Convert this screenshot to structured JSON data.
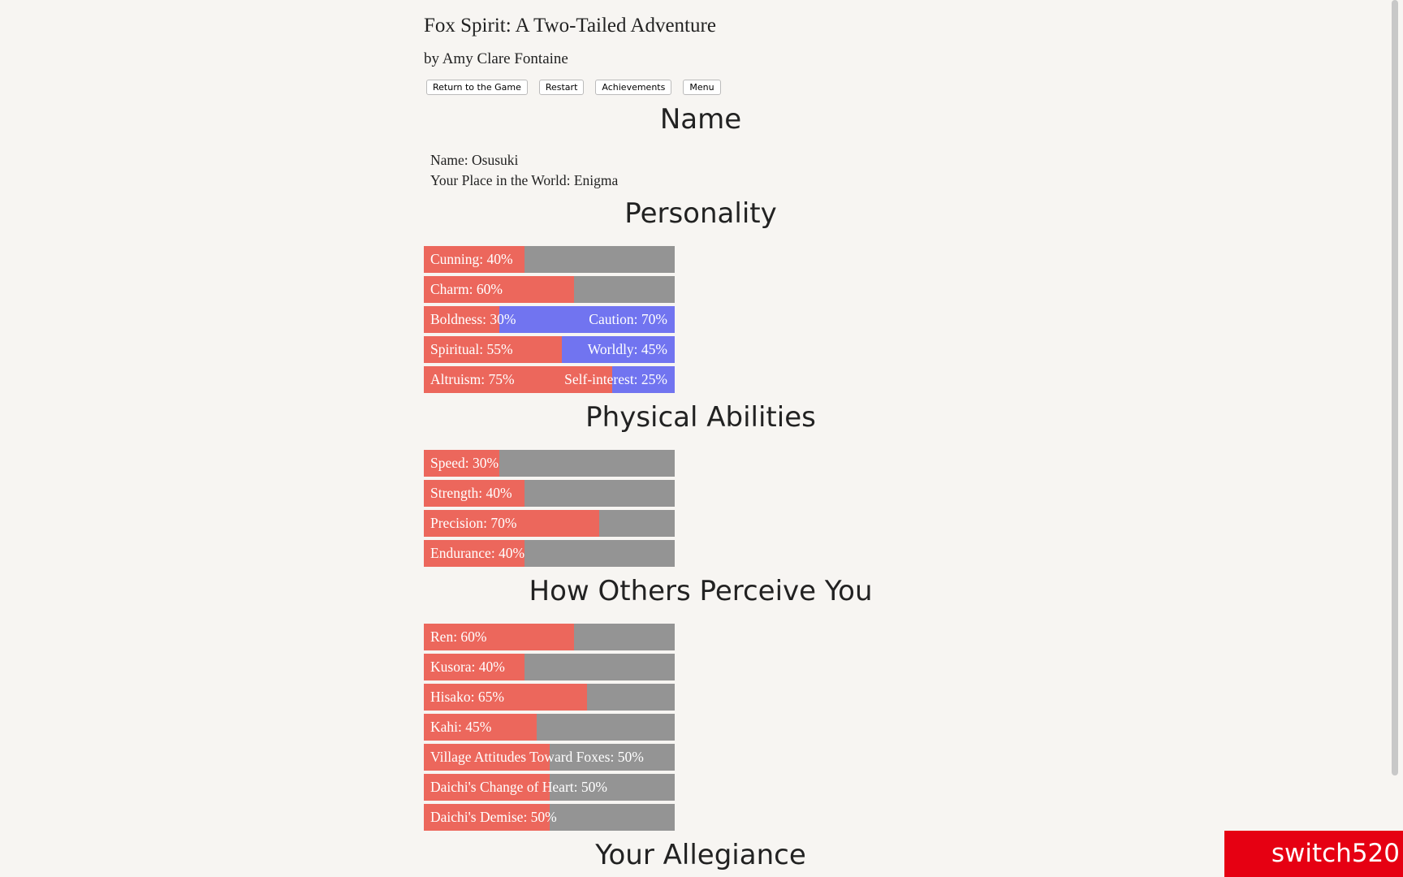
{
  "header": {
    "title": "Fox Spirit: A Two-Tailed Adventure",
    "byline": "by Amy Clare Fontaine"
  },
  "buttons": [
    "Return to the Game",
    "Restart",
    "Achievements",
    "Menu"
  ],
  "sections": [
    {
      "heading": "Name",
      "lines": [
        "Name: Osusuki",
        "Your Place in the World: Enigma"
      ]
    },
    {
      "heading": "Personality",
      "bars": [
        {
          "label": "Cunning: 40%",
          "value": 40
        },
        {
          "label": "Charm: 60%",
          "value": 60
        },
        {
          "label": "Boldness: 30%",
          "value": 30,
          "right_label": "Caution: 70%",
          "right_value": 70
        },
        {
          "label": "Spiritual: 55%",
          "value": 55,
          "right_label": "Worldly: 45%",
          "right_value": 45
        },
        {
          "label": "Altruism: 75%",
          "value": 75,
          "right_label": "Self-interest: 25%",
          "right_value": 25
        }
      ]
    },
    {
      "heading": "Physical Abilities",
      "bars": [
        {
          "label": "Speed: 30%",
          "value": 30
        },
        {
          "label": "Strength: 40%",
          "value": 40
        },
        {
          "label": "Precision: 70%",
          "value": 70
        },
        {
          "label": "Endurance: 40%",
          "value": 40
        }
      ]
    },
    {
      "heading": "How Others Perceive You",
      "bars": [
        {
          "label": "Ren: 60%",
          "value": 60
        },
        {
          "label": "Kusora: 40%",
          "value": 40
        },
        {
          "label": "Hisako: 65%",
          "value": 65
        },
        {
          "label": "Kahi: 45%",
          "value": 45
        },
        {
          "label": "Village Attitudes Toward Foxes: 50%",
          "value": 50
        },
        {
          "label": "Daichi's Change of Heart: 50%",
          "value": 50
        },
        {
          "label": "Daichi's Demise: 50%",
          "value": 50
        }
      ]
    },
    {
      "heading": "Your Allegiance"
    }
  ],
  "watermark": "switch520"
}
